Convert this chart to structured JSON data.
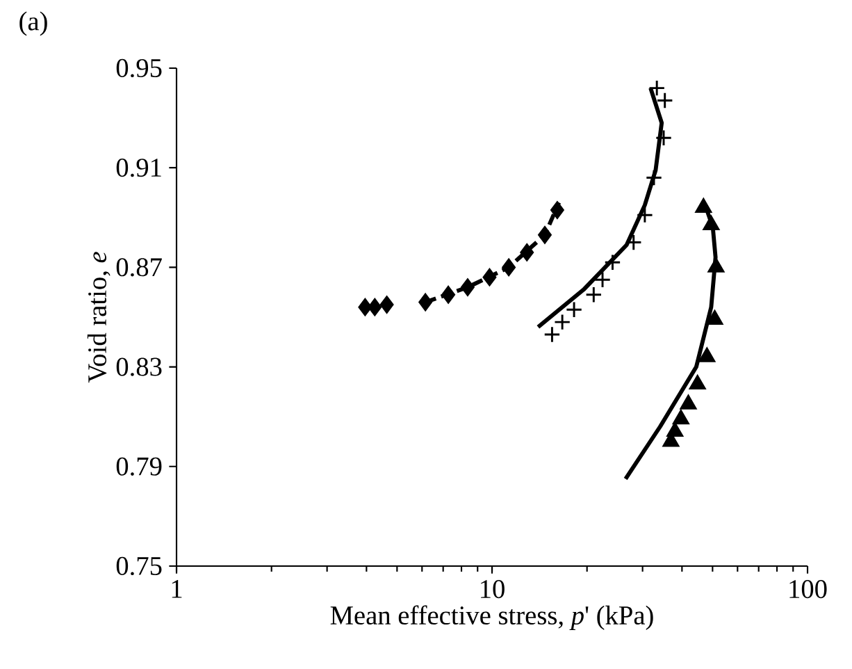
{
  "chart_data": {
    "type": "scatter",
    "title": "(a)",
    "xlabel": "Mean effective stress, *p*' (kPa)",
    "ylabel": "Void ratio, *e*",
    "log": "x",
    "xlim": [
      1,
      100
    ],
    "xticks": [
      1,
      10,
      100
    ],
    "ylim": [
      0.75,
      0.95
    ],
    "yticks": [
      0.75,
      0.79,
      0.83,
      0.87,
      0.91,
      0.95
    ],
    "series": [
      {
        "marker": "diamond",
        "color": "#000000",
        "x": [
          3.96,
          4.25,
          4.64,
          6.15,
          7.27,
          8.37,
          9.82,
          11.3,
          12.9,
          14.7,
          16.1
        ],
        "values": [
          0.854,
          0.854,
          0.855,
          0.856,
          0.859,
          0.862,
          0.866,
          0.87,
          0.876,
          0.883,
          0.893
        ]
      },
      {
        "type": "line",
        "marker": "none",
        "line_style": "dashed",
        "color": "#000000",
        "x": [
          6.15,
          8.37,
          11.3,
          14.7,
          16.3
        ],
        "values": [
          0.856,
          0.862,
          0.87,
          0.883,
          0.896
        ]
      },
      {
        "marker": "cross",
        "color": "#000000",
        "x": [
          15.5,
          16.7,
          18.2,
          21.0,
          22.4,
          24.1,
          28.1,
          30.5,
          32.6,
          35.0,
          35.3,
          33.3
        ],
        "values": [
          0.843,
          0.848,
          0.853,
          0.859,
          0.865,
          0.872,
          0.88,
          0.891,
          0.906,
          0.922,
          0.937,
          0.942
        ]
      },
      {
        "type": "line",
        "marker": "none",
        "line_style": "solid",
        "color": "#000000",
        "x": [
          14.0,
          19.5,
          26.7,
          30.5,
          33.0,
          34.5,
          31.8
        ],
        "values": [
          0.846,
          0.861,
          0.879,
          0.895,
          0.909,
          0.928,
          0.942
        ]
      },
      {
        "marker": "triangle",
        "color": "#000000",
        "x": [
          46.8,
          49.5,
          51.3,
          50.8,
          48.0,
          44.8,
          41.9,
          39.7,
          38.0,
          36.9
        ],
        "values": [
          0.894,
          0.887,
          0.87,
          0.849,
          0.834,
          0.823,
          0.815,
          0.809,
          0.804,
          0.8
        ]
      },
      {
        "type": "line",
        "marker": "none",
        "line_style": "solid",
        "color": "#000000",
        "x": [
          26.5,
          34.1,
          44.4,
          49.5,
          51.1,
          50.1,
          47.4
        ],
        "values": [
          0.785,
          0.806,
          0.83,
          0.854,
          0.874,
          0.886,
          0.895
        ]
      }
    ]
  }
}
